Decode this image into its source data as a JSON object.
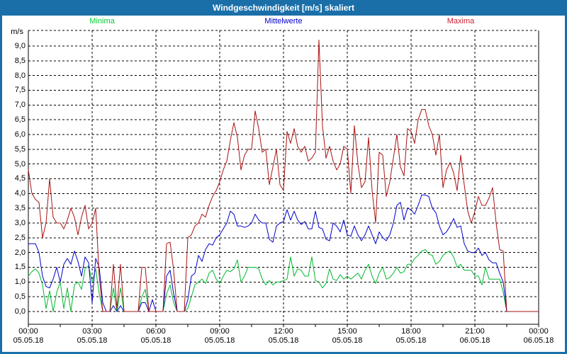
{
  "window": {
    "title": "Windgeschwindigkeit [m/s] skaliert"
  },
  "legend": [
    {
      "label": "Minima",
      "color": "#00CC33"
    },
    {
      "label": "Mittelwerte",
      "color": "#0000CC"
    },
    {
      "label": "Maxima",
      "color": "#CC2233"
    }
  ],
  "chart_data": {
    "type": "line",
    "title": "Windgeschwindigkeit [m/s] skaliert",
    "ylabel": "m/s",
    "xlabel": "",
    "grid": "dashed",
    "ylim": [
      0.0,
      9.5
    ],
    "y_tick_labels": [
      "9,0",
      "8,5",
      "8,0",
      "7,5",
      "7,0",
      "6,5",
      "6,0",
      "5,5",
      "5,0",
      "4,5",
      "4,0",
      "3,5",
      "3,0",
      "2,5",
      "2,0",
      "1,5",
      "1,0",
      "0,5",
      "0,0"
    ],
    "y_tick_values": [
      9.0,
      8.5,
      8.0,
      7.5,
      7.0,
      6.5,
      6.0,
      5.5,
      5.0,
      4.5,
      4.0,
      3.5,
      3.0,
      2.5,
      2.0,
      1.5,
      1.0,
      0.5,
      0.0
    ],
    "x_ticks": [
      {
        "time": "00:00",
        "date": "05.05.18"
      },
      {
        "time": "03:00",
        "date": "05.05.18"
      },
      {
        "time": "06:00",
        "date": "05.05.18"
      },
      {
        "time": "09:00",
        "date": "05.05.18"
      },
      {
        "time": "12:00",
        "date": "05.05.18"
      },
      {
        "time": "15:00",
        "date": "05.05.18"
      },
      {
        "time": "18:00",
        "date": "05.05.18"
      },
      {
        "time": "21:00",
        "date": "06.05.18"
      },
      {
        "time": "00:00",
        "date": "06.05.18"
      }
    ],
    "x_range_hours": 24,
    "points_per_hour": 6,
    "series": [
      {
        "name": "Minima",
        "color": "#00B82E",
        "values": [
          1.2,
          1.35,
          1.45,
          1.3,
          0.9,
          0.1,
          0.7,
          0.0,
          0.65,
          1.0,
          0.1,
          0.8,
          0.0,
          0.9,
          1.0,
          0.75,
          1.45,
          1.55,
          1.0,
          1.45,
          0.6,
          0,
          0,
          0,
          0.8,
          0,
          0.8,
          0,
          0,
          0,
          0,
          0,
          0.5,
          0.75,
          0,
          0,
          0,
          0,
          0,
          0.6,
          0.9,
          0.3,
          0,
          0,
          0,
          0.1,
          0.5,
          0.9,
          1.0,
          1.1,
          0.95,
          1.3,
          1.4,
          1.1,
          0.95,
          1.2,
          1.4,
          1.35,
          1.45,
          1.75,
          1.0,
          1.2,
          1.5,
          1.5,
          1.5,
          1.45,
          1.1,
          0.9,
          1.05,
          0.9,
          1.0,
          1.0,
          1.05,
          1.1,
          1.85,
          1.2,
          1.45,
          1.4,
          1.2,
          1.2,
          1.85,
          1.05,
          1.0,
          0.8,
          0.95,
          1.45,
          1.1,
          1.05,
          1.25,
          1.1,
          1.2,
          1.1,
          1.2,
          1.3,
          1.1,
          1.4,
          1.6,
          1.2,
          0.95,
          1.3,
          1.5,
          1.1,
          1.15,
          1.3,
          1.5,
          1.3,
          1.35,
          1.6,
          1.6,
          1.8,
          1.9,
          2.05,
          2.1,
          1.95,
          1.9,
          1.6,
          1.7,
          1.9,
          2.0,
          2.05,
          1.85,
          1.5,
          1.6,
          1.4,
          1.4,
          1.4,
          1.2,
          1.2,
          0.9,
          1.5,
          1.1,
          1.1,
          1.1,
          1.1,
          0.65,
          0,
          0,
          0,
          0,
          0,
          0,
          0,
          0,
          0,
          0
        ]
      },
      {
        "name": "Mittelwerte",
        "color": "#0000CC",
        "values": [
          2.3,
          2.3,
          2.3,
          2.0,
          1.2,
          0.85,
          0.8,
          1.1,
          1.5,
          1.0,
          1.6,
          1.8,
          1.6,
          2.05,
          1.7,
          1.2,
          1.85,
          1.65,
          0.3,
          1.8,
          1.5,
          0.3,
          0,
          0,
          0.2,
          0,
          0.2,
          0,
          0,
          0,
          0,
          0,
          0.3,
          0.3,
          0,
          0.4,
          0,
          0,
          0,
          1.2,
          1.4,
          0.6,
          0,
          0,
          0,
          0.4,
          1.2,
          1.3,
          1.9,
          1.7,
          2.1,
          2.3,
          2.25,
          2.5,
          2.6,
          2.8,
          3.0,
          3.4,
          3.3,
          2.9,
          2.9,
          2.85,
          2.9,
          3.0,
          3.3,
          3.1,
          3.0,
          3.0,
          2.45,
          2.35,
          2.9,
          3.0,
          3.05,
          3.45,
          3.1,
          3.4,
          3.1,
          2.95,
          3.05,
          2.8,
          2.8,
          3.4,
          2.85,
          2.8,
          2.45,
          2.4,
          3.0,
          2.9,
          2.7,
          3.1,
          2.6,
          2.55,
          2.9,
          2.6,
          2.4,
          2.6,
          2.9,
          2.6,
          2.3,
          2.7,
          2.5,
          2.4,
          2.6,
          3.0,
          3.6,
          3.7,
          3.1,
          3.5,
          3.45,
          3.3,
          3.6,
          3.95,
          3.95,
          3.9,
          3.5,
          3.35,
          2.9,
          2.6,
          2.7,
          2.9,
          3.15,
          2.85,
          2.9,
          2.3,
          2.05,
          2.0,
          2.0,
          2.15,
          1.9,
          2.0,
          1.75,
          1.65,
          1.65,
          1.3,
          1.0,
          0,
          0,
          0,
          0,
          0,
          0,
          0,
          0,
          0,
          0
        ]
      },
      {
        "name": "Maxima",
        "color": "#AA1111",
        "values": [
          4.8,
          4.0,
          3.8,
          3.7,
          2.5,
          3.0,
          4.5,
          3.2,
          3.0,
          3.0,
          2.8,
          3.1,
          3.5,
          3.2,
          2.6,
          3.2,
          3.6,
          2.8,
          3.0,
          3.5,
          1.2,
          0,
          0,
          0,
          1.6,
          0.1,
          1.6,
          0,
          0,
          0,
          0,
          0,
          1.5,
          1.5,
          0,
          0,
          0,
          0,
          0,
          2.3,
          2.35,
          1.4,
          0,
          0,
          0,
          2.5,
          2.6,
          2.9,
          3.0,
          3.3,
          3.2,
          3.6,
          3.9,
          4.1,
          4.4,
          4.8,
          5.1,
          5.8,
          6.4,
          5.9,
          4.8,
          5.3,
          5.5,
          5.5,
          6.8,
          6.2,
          5.4,
          5.5,
          4.3,
          4.9,
          5.5,
          4.3,
          4.1,
          6.1,
          5.7,
          6.2,
          5.6,
          5.4,
          5.6,
          5.1,
          5.2,
          5.4,
          9.2,
          6.3,
          5.2,
          5.6,
          5.1,
          4.8,
          5.0,
          5.6,
          5.5,
          4.0,
          6.3,
          5.0,
          4.2,
          4.4,
          5.9,
          4.1,
          3.0,
          5.4,
          5.3,
          3.9,
          4.4,
          5.2,
          6.0,
          4.9,
          4.6,
          6.2,
          6.1,
          5.7,
          6.5,
          6.85,
          6.85,
          6.3,
          6.0,
          5.3,
          6.0,
          4.2,
          4.8,
          5.05,
          4.7,
          4.1,
          5.3,
          4.3,
          3.4,
          3.0,
          3.4,
          3.9,
          3.6,
          3.6,
          3.85,
          4.2,
          3.0,
          2.1,
          2.05,
          0,
          0,
          0,
          0,
          0,
          0,
          0,
          0,
          0,
          0
        ]
      }
    ]
  }
}
